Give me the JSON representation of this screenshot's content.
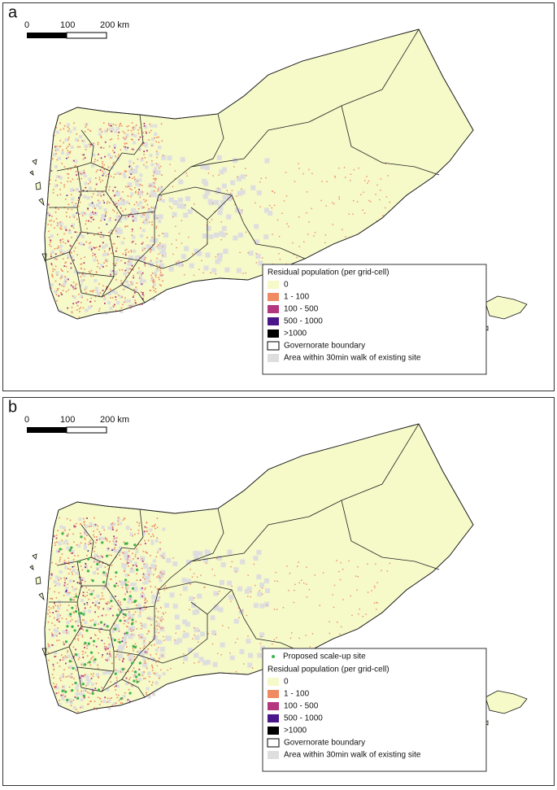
{
  "panels": [
    {
      "label": "a",
      "scale_bar": [
        "0",
        "100",
        "200 km"
      ],
      "legend": {
        "title": "Residual population (per grid-cell)",
        "items": [
          {
            "label": "0",
            "color": "#f6f9c8"
          },
          {
            "label": "1 - 100",
            "color": "#ef8a62"
          },
          {
            "label": "100 - 500",
            "color": "#b3367f"
          },
          {
            "label": "500 - 1000",
            "color": "#4a168a"
          },
          {
            "label": ">1000",
            "color": "#000000"
          },
          {
            "label": "Governorate boundary",
            "color": "#ffffff"
          },
          {
            "label": "Area within 30min walk of existing site",
            "color": "#dedede"
          }
        ]
      }
    },
    {
      "label": "b",
      "scale_bar": [
        "0",
        "100",
        "200 km"
      ],
      "markers": [
        {
          "label": "Proposed scale-up site",
          "color": "#3cb44b"
        }
      ],
      "legend": {
        "title": "Residual population (per grid-cell)",
        "items": [
          {
            "label": "0",
            "color": "#f6f9c8"
          },
          {
            "label": "1 - 100",
            "color": "#ef8a62"
          },
          {
            "label": "100 - 500",
            "color": "#b3367f"
          },
          {
            "label": "500 - 1000",
            "color": "#4a168a"
          },
          {
            "label": ">1000",
            "color": "#000000"
          },
          {
            "label": "Governorate boundary",
            "color": "#ffffff"
          },
          {
            "label": "Area within 30min walk of existing site",
            "color": "#dedede"
          }
        ]
      }
    }
  ]
}
